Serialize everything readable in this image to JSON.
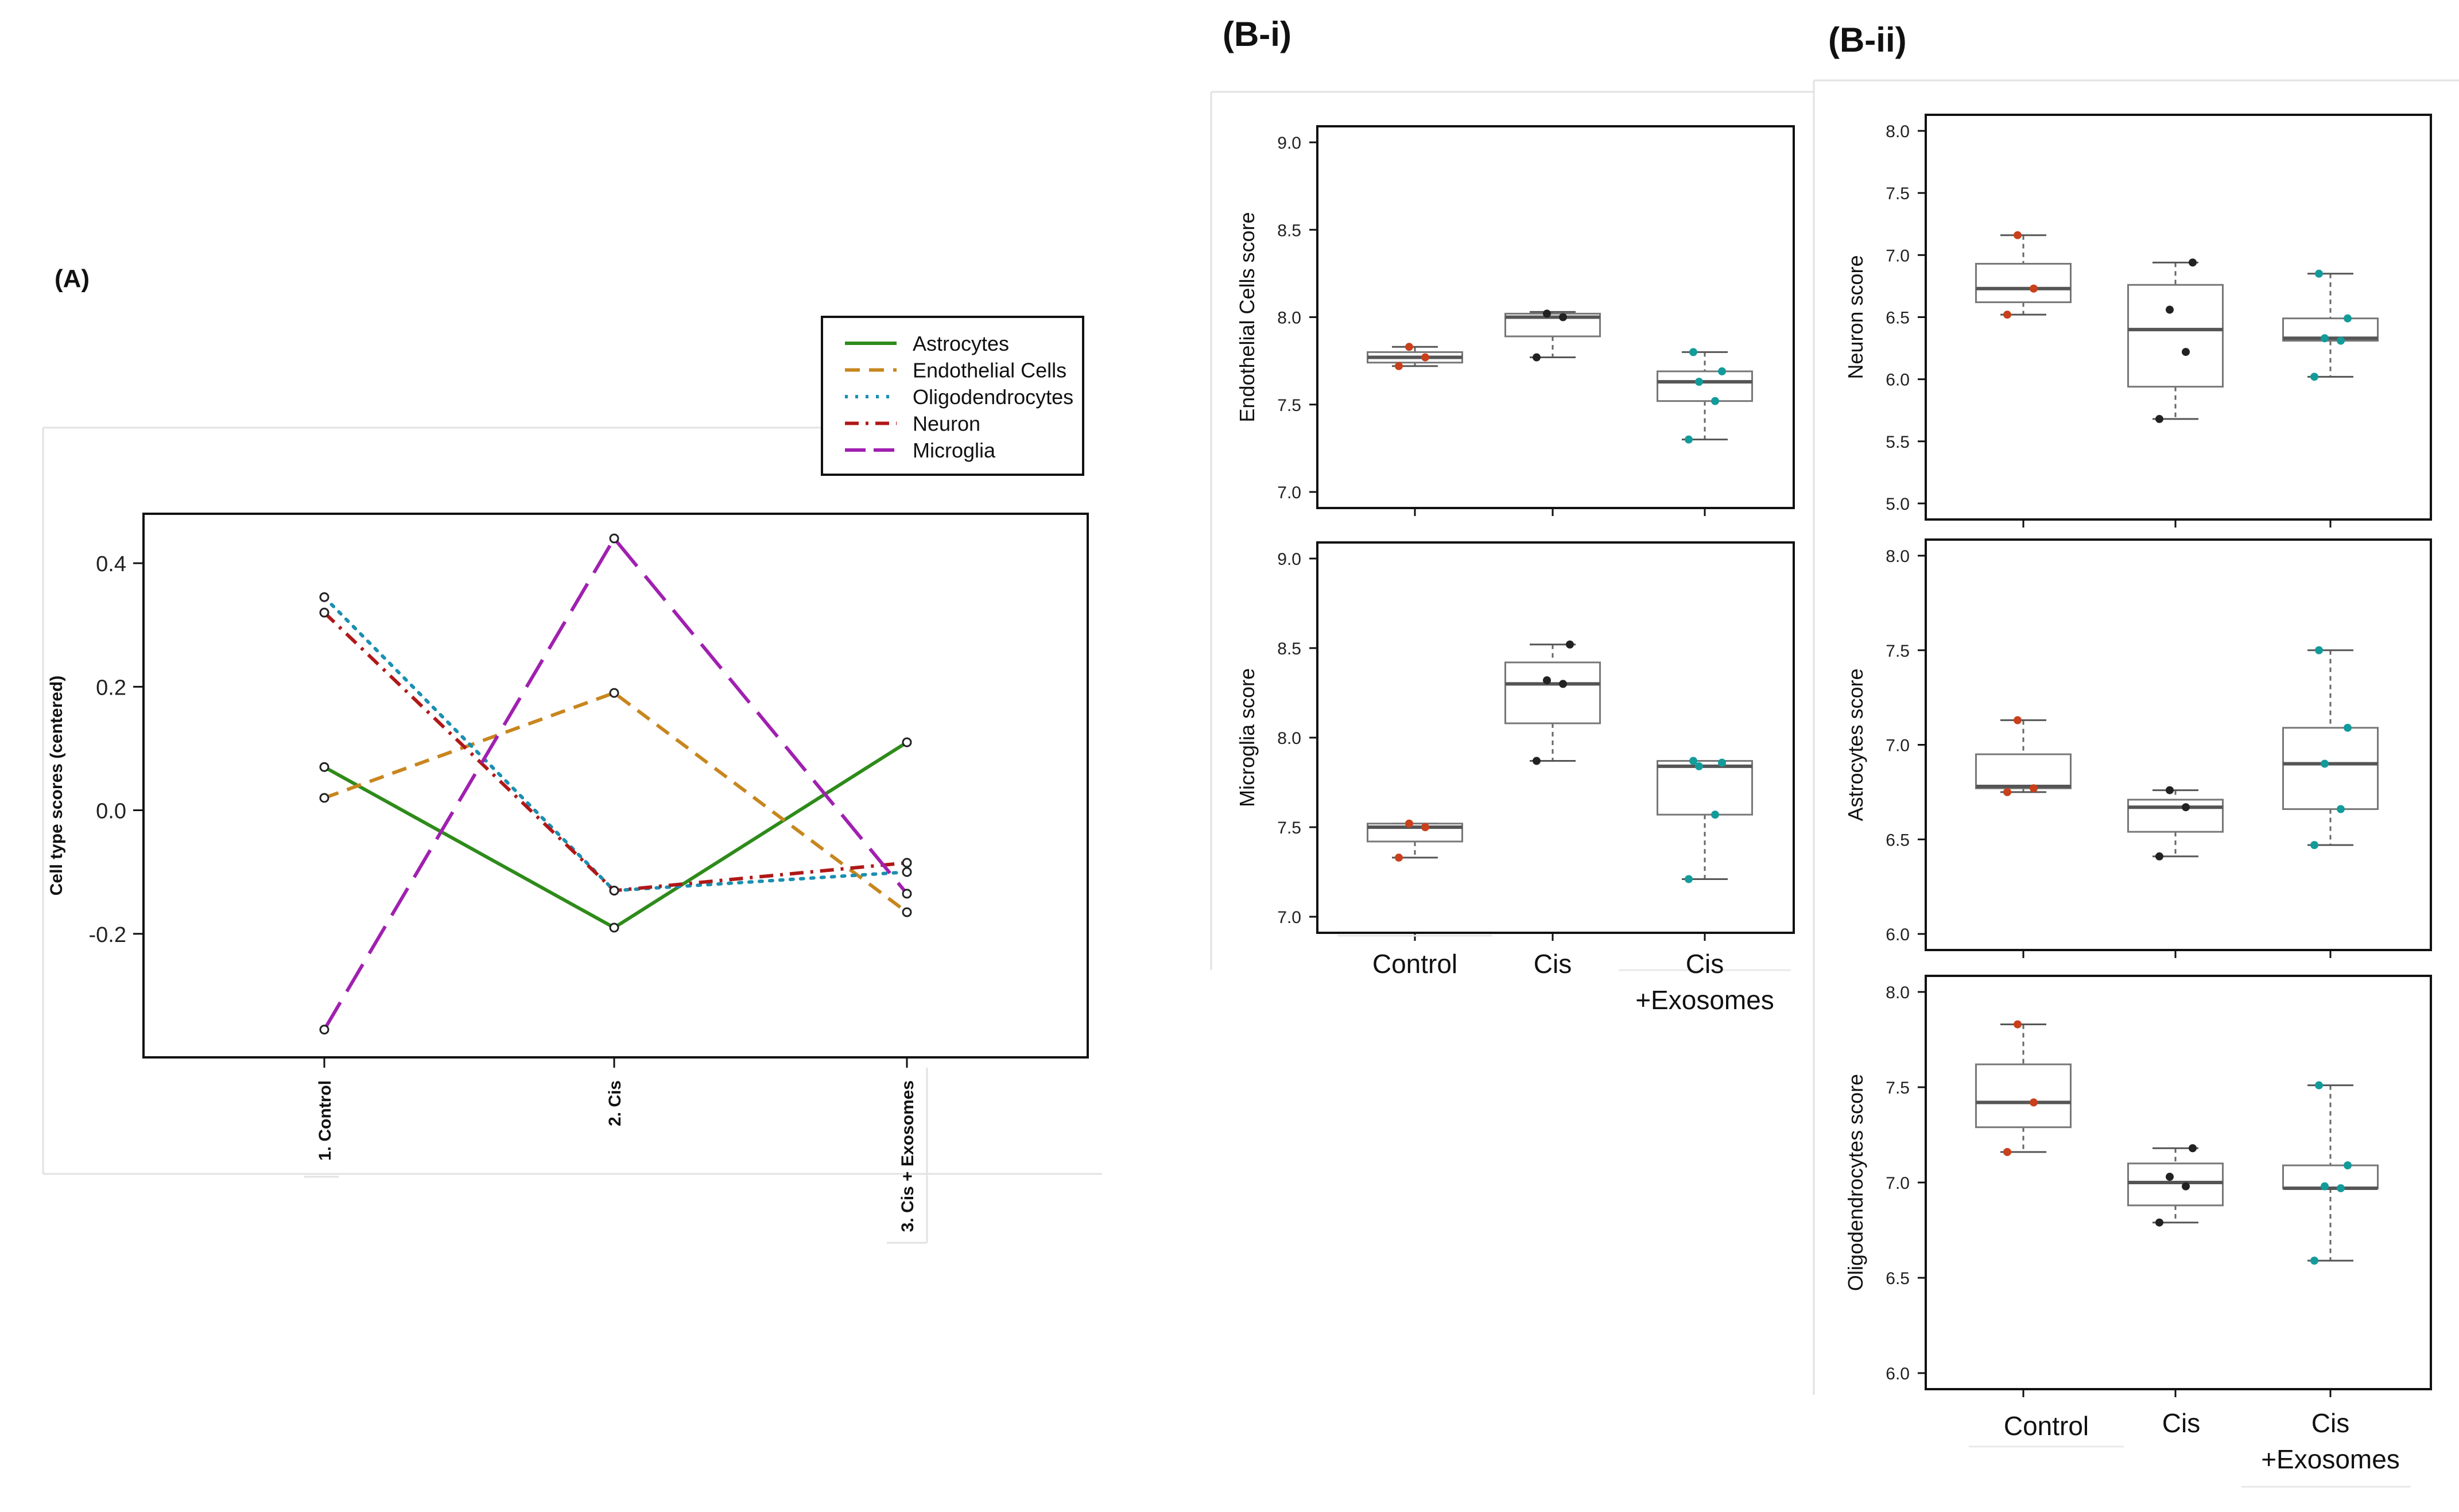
{
  "panel_labels": {
    "a": "(A)",
    "bi": "(B-i)",
    "bii": "(B-ii)"
  },
  "colors": {
    "astrocytes": "#2e8b1a",
    "endothelial": "#c8861e",
    "oligodendrocytes": "#1a8fb0",
    "neuron": "#b01818",
    "microglia": "#a020b0",
    "control_dot": "#c8401c",
    "cis_dot": "#222222",
    "exo_dot": "#139b9b"
  },
  "chart_data": [
    {
      "id": "A",
      "type": "line",
      "title": "",
      "xlabel": "",
      "ylabel": "Cell type scores (centered)",
      "categories": [
        "1. Control",
        "2. Cis",
        "3. Cis + Exosomes"
      ],
      "ylim": [
        -0.4,
        0.48
      ],
      "yticks": [
        -0.2,
        0.0,
        0.2,
        0.4
      ],
      "ytick_labels": [
        "-0.2",
        "0.0",
        "0.2",
        "0.4"
      ],
      "legend": {
        "placement": "top-right"
      },
      "series": [
        {
          "name": "Astrocytes",
          "key": "astrocytes",
          "dash": "solid",
          "values": [
            0.07,
            -0.19,
            0.11
          ]
        },
        {
          "name": "Endothelial Cells",
          "key": "endothelial",
          "dash": "dash",
          "values": [
            0.02,
            0.19,
            -0.165
          ]
        },
        {
          "name": "Oligodendrocytes",
          "key": "oligodendrocytes",
          "dash": "dot",
          "values": [
            0.345,
            -0.13,
            -0.1
          ]
        },
        {
          "name": "Neuron",
          "key": "neuron",
          "dash": "dashdot",
          "values": [
            0.32,
            -0.13,
            -0.085
          ]
        },
        {
          "name": "Microglia",
          "key": "microglia",
          "dash": "longdash",
          "values": [
            -0.355,
            0.44,
            -0.135
          ]
        }
      ]
    },
    {
      "id": "Bi-1",
      "type": "box",
      "ylabel": "Endothelial Cells score",
      "ylim": [
        7.0,
        9.0
      ],
      "yticks": [
        7.0,
        7.5,
        8.0,
        8.5,
        9.0
      ],
      "ytick_labels": [
        "7.0",
        "7.5",
        "8.0",
        "8.5",
        "9.0"
      ],
      "categories": [
        "Control",
        "Cis",
        "Cis +Exosomes"
      ],
      "boxes": [
        {
          "group": "Control",
          "min": 7.72,
          "q1": 7.74,
          "median": 7.77,
          "q3": 7.8,
          "max": 7.83,
          "points": [
            7.72,
            7.77,
            7.83
          ]
        },
        {
          "group": "Cis",
          "min": 7.77,
          "q1": 7.89,
          "median": 8.0,
          "q3": 8.02,
          "max": 8.03,
          "points": [
            7.77,
            8.0,
            8.02
          ]
        },
        {
          "group": "Cis +Exosomes",
          "min": 7.3,
          "q1": 7.52,
          "median": 7.63,
          "q3": 7.69,
          "max": 7.8,
          "points": [
            7.3,
            7.52,
            7.63,
            7.69,
            7.8
          ]
        }
      ]
    },
    {
      "id": "Bi-2",
      "type": "box",
      "ylabel": "Microglia score",
      "ylim": [
        7.0,
        9.0
      ],
      "yticks": [
        7.0,
        7.5,
        8.0,
        8.5,
        9.0
      ],
      "ytick_labels": [
        "7.0",
        "7.5",
        "8.0",
        "8.5",
        "9.0"
      ],
      "categories": [
        "Control",
        "Cis",
        "Cis +Exosomes"
      ],
      "boxes": [
        {
          "group": "Control",
          "min": 7.33,
          "q1": 7.42,
          "median": 7.5,
          "q3": 7.52,
          "max": 7.52,
          "points": [
            7.33,
            7.5,
            7.52
          ]
        },
        {
          "group": "Cis",
          "min": 7.87,
          "q1": 8.08,
          "median": 8.3,
          "q3": 8.42,
          "max": 8.52,
          "points": [
            7.87,
            8.3,
            8.32,
            8.52
          ]
        },
        {
          "group": "Cis +Exosomes",
          "min": 7.21,
          "q1": 7.57,
          "median": 7.84,
          "q3": 7.87,
          "max": 7.87,
          "points": [
            7.21,
            7.57,
            7.84,
            7.86,
            7.87
          ]
        }
      ]
    },
    {
      "id": "Bii-1",
      "type": "box",
      "ylabel": "Neuron score",
      "ylim": [
        5.0,
        8.0
      ],
      "yticks": [
        5.0,
        5.5,
        6.0,
        6.5,
        7.0,
        7.5,
        8.0
      ],
      "ytick_labels": [
        "5.0",
        "5.5",
        "6.0",
        "6.5",
        "7.0",
        "7.5",
        "8.0"
      ],
      "categories": [
        "Control",
        "Cis",
        "Cis +Exosomes"
      ],
      "boxes": [
        {
          "group": "Control",
          "min": 6.52,
          "q1": 6.62,
          "median": 6.73,
          "q3": 6.93,
          "max": 7.16,
          "points": [
            6.52,
            6.73,
            7.16
          ]
        },
        {
          "group": "Cis",
          "min": 5.68,
          "q1": 5.94,
          "median": 6.4,
          "q3": 6.76,
          "max": 6.94,
          "points": [
            5.68,
            6.22,
            6.56,
            6.94
          ]
        },
        {
          "group": "Cis +Exosomes",
          "min": 6.02,
          "q1": 6.31,
          "median": 6.33,
          "q3": 6.49,
          "max": 6.85,
          "points": [
            6.02,
            6.31,
            6.33,
            6.49,
            6.85
          ]
        }
      ]
    },
    {
      "id": "Bii-2",
      "type": "box",
      "ylabel": "Astrocytes score",
      "ylim": [
        6.0,
        8.0
      ],
      "yticks": [
        6.0,
        6.5,
        7.0,
        7.5,
        8.0
      ],
      "ytick_labels": [
        "6.0",
        "6.5",
        "7.0",
        "7.5",
        "8.0"
      ],
      "categories": [
        "Control",
        "Cis",
        "Cis +Exosomes"
      ],
      "boxes": [
        {
          "group": "Control",
          "min": 6.75,
          "q1": 6.77,
          "median": 6.78,
          "q3": 6.95,
          "max": 7.13,
          "points": [
            6.75,
            6.77,
            7.13
          ]
        },
        {
          "group": "Cis",
          "min": 6.41,
          "q1": 6.54,
          "median": 6.67,
          "q3": 6.71,
          "max": 6.76,
          "points": [
            6.41,
            6.67,
            6.76
          ]
        },
        {
          "group": "Cis +Exosomes",
          "min": 6.47,
          "q1": 6.66,
          "median": 6.9,
          "q3": 7.09,
          "max": 7.5,
          "points": [
            6.47,
            6.66,
            6.9,
            7.09,
            7.5
          ]
        }
      ]
    },
    {
      "id": "Bii-3",
      "type": "box",
      "ylabel": "Oligodendrocytes score",
      "ylim": [
        6.0,
        8.0
      ],
      "yticks": [
        6.0,
        6.5,
        7.0,
        7.5,
        8.0
      ],
      "ytick_labels": [
        "6.0",
        "6.5",
        "7.0",
        "7.5",
        "8.0"
      ],
      "categories": [
        "Control",
        "Cis",
        "Cis +Exosomes"
      ],
      "boxes": [
        {
          "group": "Control",
          "min": 7.16,
          "q1": 7.29,
          "median": 7.42,
          "q3": 7.62,
          "max": 7.83,
          "points": [
            7.16,
            7.42,
            7.83
          ]
        },
        {
          "group": "Cis",
          "min": 6.79,
          "q1": 6.88,
          "median": 7.0,
          "q3": 7.1,
          "max": 7.18,
          "points": [
            6.79,
            6.98,
            7.03,
            7.18
          ]
        },
        {
          "group": "Cis +Exosomes",
          "min": 6.59,
          "q1": 6.97,
          "median": 6.97,
          "q3": 7.09,
          "max": 7.51,
          "points": [
            6.59,
            6.97,
            6.98,
            7.09,
            7.51
          ]
        }
      ]
    }
  ],
  "category_labels": {
    "bi": [
      "Control",
      "Cis",
      "Cis",
      "+Exosomes"
    ],
    "bii": [
      "Control",
      "Cis",
      "Cis",
      "+Exosomes"
    ]
  }
}
